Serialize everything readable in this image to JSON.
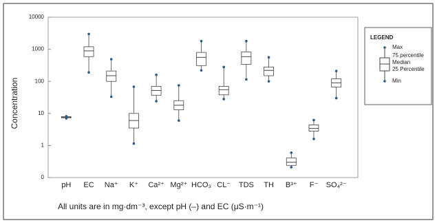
{
  "chart_data": {
    "type": "box",
    "y_label": "Concentration",
    "note": "All units are in mg·dm⁻³, except pH (–) and EC (μS·m⁻¹)",
    "legend_title": "LEGEND",
    "categories": [
      "pH",
      "EC",
      "Na⁺",
      "K⁺",
      "Ca²⁺",
      "Mg²⁺",
      "HCO₃",
      "CL⁻",
      "TDS",
      "TH",
      "B³⁺",
      "F⁻",
      "SO₄²⁻"
    ],
    "series": [
      {
        "name": "Max",
        "values": [
          8.2,
          3000,
          490,
          68,
          160,
          75,
          1800,
          280,
          1800,
          560,
          0.6,
          6.2,
          210
        ]
      },
      {
        "name": "75 percentile",
        "values": [
          7.9,
          1200,
          210,
          10,
          70,
          25,
          800,
          70,
          830,
          280,
          0.41,
          4.4,
          120
        ]
      },
      {
        "name": "Median",
        "values": [
          7.6,
          890,
          150,
          6,
          52,
          18,
          560,
          55,
          590,
          220,
          0.3,
          3.4,
          90
        ]
      },
      {
        "name": "25 Percentile",
        "values": [
          7.3,
          590,
          100,
          3.5,
          37,
          13,
          310,
          38,
          340,
          150,
          0.24,
          2.8,
          66
        ]
      },
      {
        "name": "Min",
        "values": [
          7,
          190,
          33,
          1.15,
          24,
          6,
          220,
          28,
          115,
          100,
          0.21,
          1.6,
          30
        ]
      }
    ],
    "log_scale": true,
    "ylim": [
      0.1,
      10000
    ],
    "yticks": [
      {
        "value": 0.1,
        "label": "0"
      },
      1,
      10,
      100,
      1000,
      10000
    ],
    "box_color": "#444444",
    "whisker_end_color": "#2a5a8a"
  }
}
